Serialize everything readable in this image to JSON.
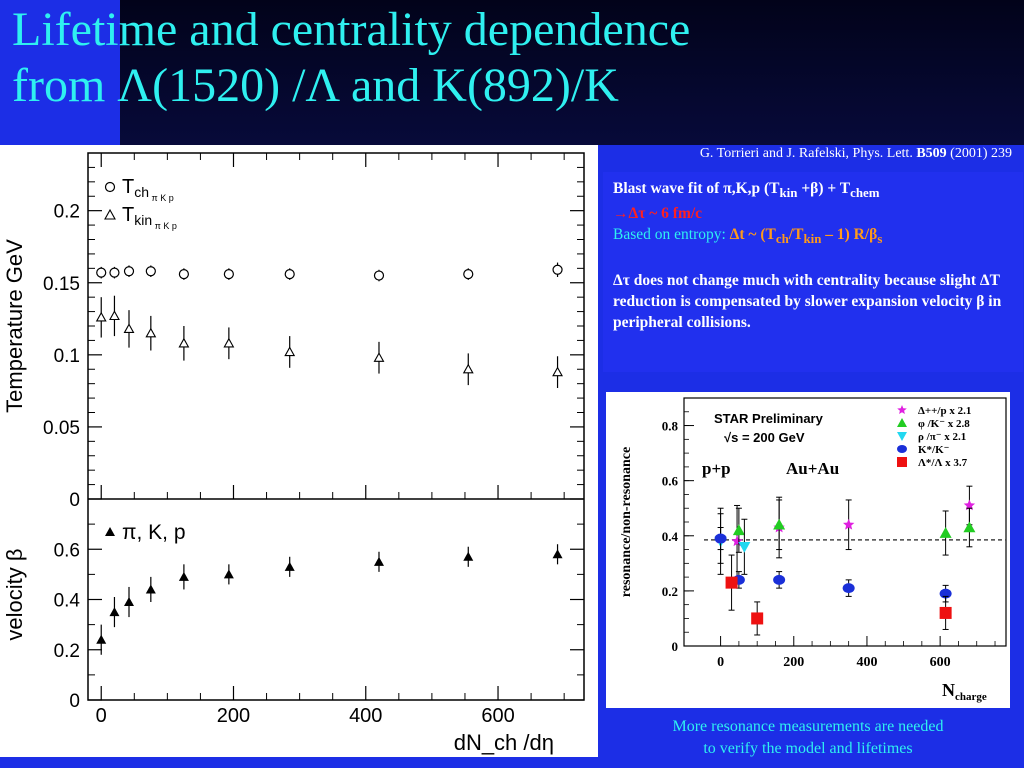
{
  "slide": {
    "title_line1": "Lifetime and centrality dependence",
    "title_line2": "from Λ(1520) /Λ and K(892)/K",
    "citation_prefix": "G. Torrieri and J. Rafelski, Phys. Lett. ",
    "citation_vol": "B509",
    "citation_suffix": " (2001) 239",
    "note_line1": "More resonance measurements are needed",
    "note_line2": "to verify the model and lifetimes"
  },
  "textbox": {
    "l1_a": "Blast wave fit of π,K,p (T",
    "l1_sub": "kin",
    "l1_b": " +β) + T",
    "l1_sub2": "chem",
    "l2": "→Δτ ~ 6 fm/c",
    "l3_a": "Based on entropy: ",
    "l3_b": "Δt ~ (T",
    "l3_sub1": "ch",
    "l3_c": "/T",
    "l3_sub2": "kin",
    "l3_d": " – 1) R/β",
    "l3_sub3": "s",
    "p2": "Δτ does not change much with centrality because slight ΔT reduction is compensated by slower expansion velocity β in peripheral collisions."
  },
  "chart_data": [
    {
      "type": "scatter",
      "title": "",
      "xlabel": "dN_ch /dη",
      "ylabel": "Temperature GeV",
      "xlim": [
        -20,
        730
      ],
      "ylim": [
        0,
        0.24
      ],
      "xticks": [
        "0",
        "200",
        "400",
        "600"
      ],
      "yticks": [
        "0",
        "0.05",
        "0.1",
        "0.15",
        "0.2"
      ],
      "series": [
        {
          "name": "T_ch π K p",
          "marker": "circle",
          "x": [
            0,
            20,
            42,
            75,
            125,
            193,
            285,
            420,
            555,
            690
          ],
          "y": [
            0.157,
            0.157,
            0.158,
            0.158,
            0.156,
            0.156,
            0.156,
            0.155,
            0.156,
            0.159
          ],
          "err": [
            0.004,
            0.004,
            0.004,
            0.004,
            0.004,
            0.004,
            0.004,
            0.004,
            0.004,
            0.005
          ]
        },
        {
          "name": "T_kin π K p",
          "marker": "triangle-open",
          "x": [
            0,
            20,
            42,
            75,
            125,
            193,
            285,
            420,
            555,
            690
          ],
          "y": [
            0.126,
            0.127,
            0.118,
            0.115,
            0.108,
            0.108,
            0.102,
            0.098,
            0.09,
            0.088
          ],
          "err": [
            0.014,
            0.014,
            0.013,
            0.012,
            0.012,
            0.011,
            0.011,
            0.011,
            0.011,
            0.011
          ]
        }
      ],
      "legend_labels": {
        "a": "T",
        "a_sub": "ch",
        "a_sub2": "π K p",
        "b": "T",
        "b_sub": "kin",
        "b_sub2": "π K p"
      },
      "legend_position": "top-left"
    },
    {
      "type": "scatter",
      "title": "",
      "xlabel": "dN_ch /dη",
      "ylabel": "velocity β",
      "xlim": [
        -20,
        730
      ],
      "ylim": [
        0,
        0.8
      ],
      "xticks": [
        "0",
        "200",
        "400",
        "600"
      ],
      "yticks": [
        "0",
        "0.2",
        "0.4",
        "0.6"
      ],
      "series": [
        {
          "name": "π, K, p",
          "marker": "triangle-filled",
          "x": [
            0,
            20,
            42,
            75,
            125,
            193,
            285,
            420,
            555,
            690
          ],
          "y": [
            0.24,
            0.35,
            0.39,
            0.44,
            0.49,
            0.5,
            0.53,
            0.55,
            0.57,
            0.58
          ],
          "err": [
            0.06,
            0.06,
            0.06,
            0.05,
            0.05,
            0.04,
            0.04,
            0.04,
            0.04,
            0.04
          ]
        }
      ],
      "legend_label": "π, K, p",
      "legend_position": "top-left"
    },
    {
      "type": "scatter",
      "title": "STAR Preliminary",
      "subtitle": "√s = 200 GeV",
      "xlabel": "N",
      "xlabel_sub": "charge",
      "ylabel": "resonance/non-resonance",
      "xlim": [
        -100,
        780
      ],
      "ylim": [
        0,
        0.9
      ],
      "xticks": [
        "0",
        "200",
        "400",
        "600"
      ],
      "yticks": [
        "0",
        "0.2",
        "0.4",
        "0.6",
        "0.8"
      ],
      "reference_line": 0.385,
      "annotations": [
        "p+p",
        "Au+Au"
      ],
      "series": [
        {
          "name": "Δ++/p  x 2.1",
          "marker": "star",
          "color": "#e020e0",
          "x": [
            0,
            45,
            160,
            350,
            680
          ],
          "y": [
            0.39,
            0.38,
            0.43,
            0.44,
            0.51
          ],
          "err": [
            0.09,
            0.13,
            0.11,
            0.09,
            0.07
          ]
        },
        {
          "name": "φ /K⁻  x 2.8",
          "marker": "triangle-up",
          "color": "#22cc22",
          "x": [
            50,
            160,
            615,
            680
          ],
          "y": [
            0.42,
            0.44,
            0.41,
            0.43
          ],
          "err": [
            0.08,
            0.09,
            0.08,
            0.07
          ]
        },
        {
          "name": "ρ /π⁻  x 2.1",
          "marker": "triangle-down",
          "color": "#22d8f0",
          "x": [
            0,
            65
          ],
          "y": [
            0.38,
            0.36
          ],
          "err": [
            0.12,
            0.1
          ]
        },
        {
          "name": "K*/K⁻",
          "marker": "circle",
          "color": "#1a2fd8",
          "x": [
            0,
            50,
            160,
            350,
            615
          ],
          "y": [
            0.39,
            0.24,
            0.24,
            0.21,
            0.19
          ],
          "err": [
            0.04,
            0.03,
            0.03,
            0.03,
            0.03
          ]
        },
        {
          "name": "Λ*/Λ  x 3.7",
          "marker": "square",
          "color": "#ee1111",
          "x": [
            30,
            100,
            615
          ],
          "y": [
            0.23,
            0.1,
            0.12
          ],
          "err": [
            0.1,
            0.06,
            0.06
          ]
        }
      ],
      "legend_position": "top-right"
    }
  ]
}
